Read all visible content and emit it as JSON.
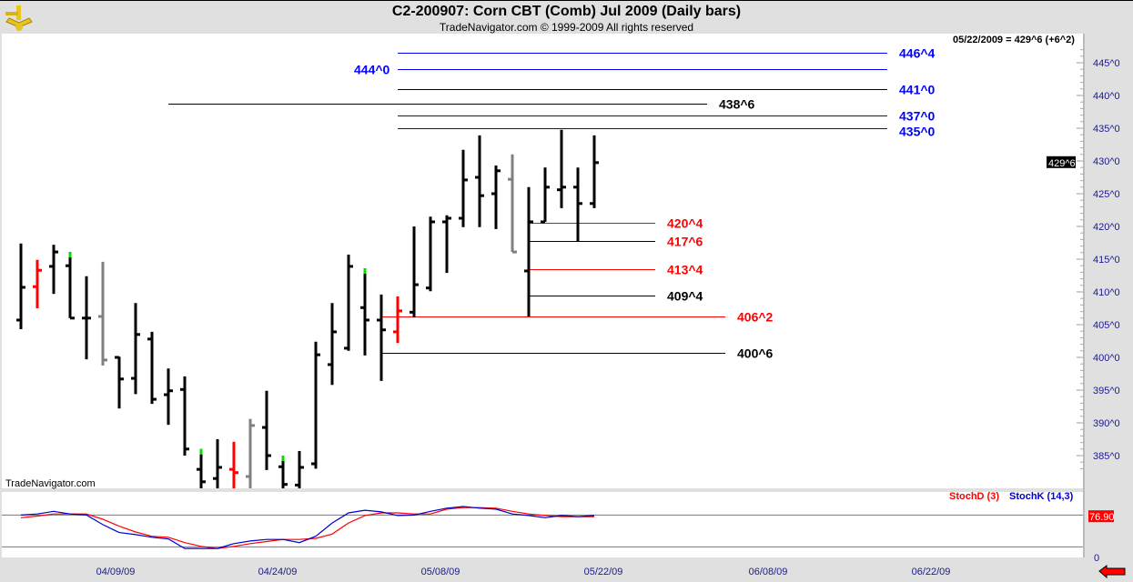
{
  "header": {
    "title": "C2-200907:  Corn CBT (Comb) Jul 2009  (Daily bars)",
    "subtitle": "TradeNavigator.com © 1999-2009 All rights reserved",
    "logo": "sextant-logo"
  },
  "watermark": "TradeNavigator.com",
  "last_quote": "05/22/2009 = 429^6 (+6^2)",
  "colors": {
    "up_flag": "#00e000",
    "red_bar": "#ff0000",
    "gray_bar": "#808080",
    "level_blue": "#0000ff",
    "level_red": "#ff0000",
    "level_black": "#000000",
    "stochD": "#ff0000",
    "stochK": "#0000cc"
  },
  "chart_data": [
    {
      "type": "ohlc",
      "ylim": [
        380,
        448
      ],
      "ytick_labels": [
        "445^0",
        "440^0",
        "435^0",
        "430^0",
        "425^0",
        "420^0",
        "415^0",
        "410^0",
        "405^0",
        "400^0",
        "395^0",
        "390^0",
        "385^0"
      ],
      "ytick_values": [
        445,
        440,
        435,
        430,
        425,
        420,
        415,
        410,
        405,
        400,
        395,
        390,
        385
      ],
      "current_price_label": "429^6",
      "current_price": 429.75,
      "bars": [
        {
          "o": 405.7,
          "h": 417.4,
          "l": 404.3,
          "c": 410.7
        },
        {
          "o": 410.8,
          "h": 414.9,
          "l": 407.5,
          "c": 413.3,
          "color": "red"
        },
        {
          "o": 413.9,
          "h": 417.2,
          "l": 409.7,
          "c": 416.1
        },
        {
          "o": 414.0,
          "h": 416.1,
          "l": 406.0,
          "c": 406.0,
          "flag": true
        },
        {
          "o": 406.0,
          "h": 412.4,
          "l": 399.7,
          "c": 406.0
        },
        {
          "o": 406.25,
          "h": 414.6,
          "l": 398.75,
          "c": 399.6,
          "color": "gray"
        },
        {
          "o": 400.0,
          "h": 400.1,
          "l": 392.2,
          "c": 396.7
        },
        {
          "o": 396.8,
          "h": 408.3,
          "l": 394.4,
          "c": 403.5
        },
        {
          "o": 402.8,
          "h": 403.9,
          "l": 392.9,
          "c": 393.6
        },
        {
          "o": 394.3,
          "h": 398.3,
          "l": 389.7,
          "c": 394.9
        },
        {
          "o": 395.1,
          "h": 397.1,
          "l": 385.0,
          "c": 386.0
        },
        {
          "o": 382.9,
          "h": 386.0,
          "l": 379,
          "c": 381.0,
          "flag": true
        },
        {
          "o": 381.5,
          "h": 387.5,
          "l": 379,
          "c": 383.2
        },
        {
          "o": 382.9,
          "h": 387.1,
          "l": 379,
          "c": 382.4,
          "color": "red"
        },
        {
          "o": 381.8,
          "h": 390.6,
          "l": 379,
          "c": 389.6,
          "color": "gray"
        },
        {
          "o": 389.3,
          "h": 394.9,
          "l": 382.8,
          "c": 385.0
        },
        {
          "o": 383.3,
          "h": 385.0,
          "l": 379,
          "c": 380.6,
          "flag": true
        },
        {
          "o": 380.5,
          "h": 385.7,
          "l": 379,
          "c": 383.2
        },
        {
          "o": 383.75,
          "h": 402.4,
          "l": 383.0,
          "c": 400.4
        },
        {
          "o": 398.9,
          "h": 408.3,
          "l": 395.8,
          "c": 403.9
        },
        {
          "o": 401.4,
          "h": 415.7,
          "l": 401.0,
          "c": 413.9
        },
        {
          "o": 407.6,
          "h": 413.6,
          "l": 400.3,
          "c": 405.7,
          "flag": true
        },
        {
          "o": 405.7,
          "h": 409.6,
          "l": 396.4,
          "c": 404.2
        },
        {
          "o": 403.9,
          "h": 409.3,
          "l": 402.2,
          "c": 407.1,
          "color": "red"
        },
        {
          "o": 406.9,
          "h": 420.0,
          "l": 406.1,
          "c": 411.1
        },
        {
          "o": 410.6,
          "h": 421.5,
          "l": 410.1,
          "c": 420.7
        },
        {
          "o": 420.7,
          "h": 421.7,
          "l": 412.9,
          "c": 421.25
        },
        {
          "o": 421.25,
          "h": 431.7,
          "l": 419.9,
          "c": 427.1
        },
        {
          "o": 427.5,
          "h": 433.9,
          "l": 419.9,
          "c": 424.7
        },
        {
          "o": 425.0,
          "h": 429.3,
          "l": 419.6,
          "c": 428.5
        },
        {
          "o": 427.2,
          "h": 431.0,
          "l": 416.1,
          "c": 416.1,
          "color": "gray"
        },
        {
          "o": 413.2,
          "h": 426.0,
          "l": 406.25,
          "c": 420.7
        },
        {
          "o": 420.7,
          "h": 429.0,
          "l": 420.7,
          "c": 426.0
        },
        {
          "o": 425.6,
          "h": 434.75,
          "l": 422.8,
          "c": 426.0
        },
        {
          "o": 426.0,
          "h": 429.0,
          "l": 417.75,
          "c": 423.5
        },
        {
          "o": 423.5,
          "h": 433.9,
          "l": 422.8,
          "c": 429.75
        }
      ],
      "levels": [
        {
          "label": "446^4",
          "price": 446.5,
          "color": "blue",
          "span": "long",
          "label_side": "right"
        },
        {
          "label": "444^0",
          "price": 444.0,
          "color": "blue",
          "span": "long",
          "label_side": "left"
        },
        {
          "label": "441^0",
          "price": 441.0,
          "color": "black",
          "span": "long",
          "label_side": "right",
          "label_color": "blue"
        },
        {
          "label": "438^6",
          "price": 438.75,
          "color": "black",
          "span": "wide",
          "label_side": "right"
        },
        {
          "label": "437^0",
          "price": 437.0,
          "color": "blue",
          "span": "long",
          "label_side": "right"
        },
        {
          "label": "435^0",
          "price": 435.0,
          "color": "blue",
          "span": "long",
          "label_side": "right"
        },
        {
          "label": "420^4",
          "price": 420.5,
          "color": "red",
          "span": "short",
          "label_side": "right"
        },
        {
          "label": "417^6",
          "price": 417.75,
          "color": "black",
          "span": "short",
          "label_side": "right",
          "label_color": "red"
        },
        {
          "label": "413^4",
          "price": 413.5,
          "color": "red",
          "span": "short",
          "label_side": "right"
        },
        {
          "label": "409^4",
          "price": 409.5,
          "color": "black",
          "span": "short",
          "label_side": "right"
        },
        {
          "label": "406^2",
          "price": 406.25,
          "color": "red",
          "span": "mid",
          "label_side": "right"
        },
        {
          "label": "400^6",
          "price": 400.75,
          "color": "black",
          "span": "mid",
          "label_side": "right"
        }
      ]
    },
    {
      "type": "line",
      "ylim": [
        0,
        105
      ],
      "ytick_labels": [
        "0"
      ],
      "reference_lines": [
        80,
        20
      ],
      "current_value_label": "76.90",
      "series": [
        {
          "name": "StochD (3)",
          "values": [
            75,
            78,
            82,
            82,
            82,
            72,
            59,
            48,
            40,
            38,
            28,
            21,
            17,
            21,
            26,
            30,
            34,
            34,
            36,
            44,
            65,
            79,
            84,
            84,
            82,
            82,
            91,
            94,
            94,
            93,
            87,
            82,
            79,
            77,
            77,
            77
          ]
        },
        {
          "name": "StochK (14,3)",
          "values": [
            80,
            82,
            87,
            82,
            80,
            62,
            47,
            43,
            38,
            35,
            17,
            17,
            17,
            26,
            31,
            34,
            34,
            28,
            40,
            65,
            84,
            89,
            86,
            79,
            80,
            87,
            93,
            96,
            93,
            91,
            82,
            79,
            75,
            79,
            77,
            79
          ]
        }
      ]
    }
  ],
  "xaxis": {
    "labels": [
      "04/09/09",
      "04/24/09",
      "05/08/09",
      "05/22/09",
      "06/08/09",
      "06/22/09"
    ]
  },
  "scroll_arrow": "left-arrow-icon"
}
